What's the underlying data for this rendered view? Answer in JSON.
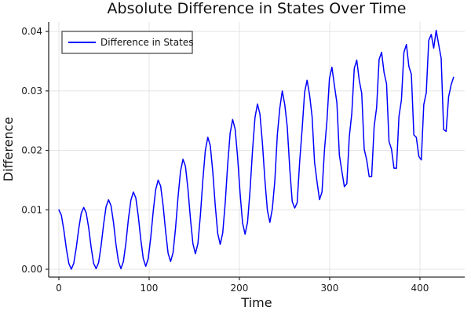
{
  "figure": {
    "background": "#ffffff"
  },
  "colors": {
    "line": "#0000ff",
    "grid": "#e4e4e4",
    "axis": "#2b2b2b",
    "tick_text": "#1b1b1b",
    "legend_border": "#4d4d4d",
    "legend_fill": "#ffffff"
  },
  "legend": {
    "label": "Difference in States",
    "position": "top-left"
  },
  "chart_data": {
    "type": "line",
    "title": "Absolute Difference in States Over Time",
    "xlabel": "Time",
    "ylabel": "Difference",
    "xlim": [
      -11.3,
      449.6
    ],
    "ylim": [
      -0.00132,
      0.0416
    ],
    "grid": true,
    "legend_position": "top-left",
    "xticks": {
      "values": [
        0,
        100,
        200,
        300,
        400
      ],
      "labels": [
        "0",
        "100",
        "200",
        "300",
        "400"
      ]
    },
    "yticks": {
      "values": [
        0,
        0.01,
        0.02,
        0.03,
        0.04
      ],
      "labels": [
        "0.00",
        "0.01",
        "0.02",
        "0.03",
        "0.04"
      ]
    },
    "series": [
      {
        "name": "Difference in States",
        "color": "#0000ff",
        "x_start": 0,
        "x_step": 2.75,
        "y": [
          0.01,
          0.0091,
          0.0066,
          0.0035,
          0.001,
          0.0,
          0.001,
          0.0036,
          0.0068,
          0.0094,
          0.0104,
          0.0095,
          0.007,
          0.0037,
          0.001,
          0.0001,
          0.0011,
          0.0039,
          0.0075,
          0.0105,
          0.0117,
          0.0107,
          0.0079,
          0.0042,
          0.0013,
          0.0001,
          0.0013,
          0.0044,
          0.0084,
          0.0116,
          0.013,
          0.012,
          0.0089,
          0.005,
          0.0018,
          0.0005,
          0.0018,
          0.0053,
          0.0097,
          0.0134,
          0.015,
          0.014,
          0.0107,
          0.0064,
          0.0027,
          0.0013,
          0.0028,
          0.0069,
          0.0121,
          0.0165,
          0.0185,
          0.0173,
          0.0135,
          0.0085,
          0.0043,
          0.0026,
          0.0043,
          0.009,
          0.015,
          0.02,
          0.0222,
          0.0208,
          0.0164,
          0.0107,
          0.006,
          0.0042,
          0.0061,
          0.0111,
          0.0176,
          0.0229,
          0.0252,
          0.0236,
          0.0189,
          0.0128,
          0.0078,
          0.0059,
          0.0079,
          0.0132,
          0.0199,
          0.0255,
          0.0278,
          0.0261,
          0.0212,
          0.015,
          0.0099,
          0.0079,
          0.0102,
          0.0149,
          0.0226,
          0.0271,
          0.03,
          0.0277,
          0.024,
          0.017,
          0.0114,
          0.0103,
          0.0112,
          0.0181,
          0.0236,
          0.0298,
          0.0318,
          0.0293,
          0.0257,
          0.018,
          0.0147,
          0.0117,
          0.013,
          0.0201,
          0.025,
          0.0321,
          0.034,
          0.0309,
          0.028,
          0.0192,
          0.0165,
          0.0139,
          0.0144,
          0.0223,
          0.0262,
          0.0338,
          0.0352,
          0.0318,
          0.0296,
          0.0202,
          0.0184,
          0.0156,
          0.0156,
          0.024,
          0.0272,
          0.0353,
          0.0365,
          0.0331,
          0.0312,
          0.0215,
          0.0202,
          0.017,
          0.017,
          0.0257,
          0.0285,
          0.0365,
          0.0378,
          0.0341,
          0.0328,
          0.0226,
          0.0222,
          0.019,
          0.0184,
          0.0277,
          0.0297,
          0.0385,
          0.0395,
          0.0372,
          0.0402,
          0.0378,
          0.0355,
          0.0235,
          0.0232,
          0.029,
          0.031,
          0.0323
        ]
      }
    ]
  }
}
